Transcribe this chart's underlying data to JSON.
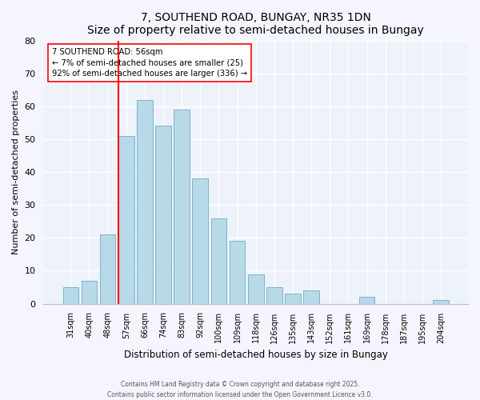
{
  "title": "7, SOUTHEND ROAD, BUNGAY, NR35 1DN",
  "subtitle": "Size of property relative to semi-detached houses in Bungay",
  "xlabel": "Distribution of semi-detached houses by size in Bungay",
  "ylabel": "Number of semi-detached properties",
  "bar_labels": [
    "31sqm",
    "40sqm",
    "48sqm",
    "57sqm",
    "66sqm",
    "74sqm",
    "83sqm",
    "92sqm",
    "100sqm",
    "109sqm",
    "118sqm",
    "126sqm",
    "135sqm",
    "143sqm",
    "152sqm",
    "161sqm",
    "169sqm",
    "178sqm",
    "187sqm",
    "195sqm",
    "204sqm"
  ],
  "bar_values": [
    5,
    7,
    21,
    51,
    62,
    54,
    59,
    38,
    26,
    19,
    9,
    5,
    3,
    4,
    0,
    0,
    2,
    0,
    0,
    0,
    1
  ],
  "bar_color": "#b8d9e8",
  "bar_edge_color": "#7ab5cc",
  "marker_line_x_label": "57sqm",
  "marker_line_color": "red",
  "annotation_line1": "7 SOUTHEND ROAD: 56sqm",
  "annotation_line2": "← 7% of semi-detached houses are smaller (25)",
  "annotation_line3": "92% of semi-detached houses are larger (336) →",
  "ylim": [
    0,
    80
  ],
  "yticks": [
    0,
    10,
    20,
    30,
    40,
    50,
    60,
    70,
    80
  ],
  "bg_color": "#eef2fb",
  "fig_bg_color": "#f5f5ff",
  "footer1": "Contains HM Land Registry data © Crown copyright and database right 2025.",
  "footer2": "Contains public sector information licensed under the Open Government Licence v3.0."
}
